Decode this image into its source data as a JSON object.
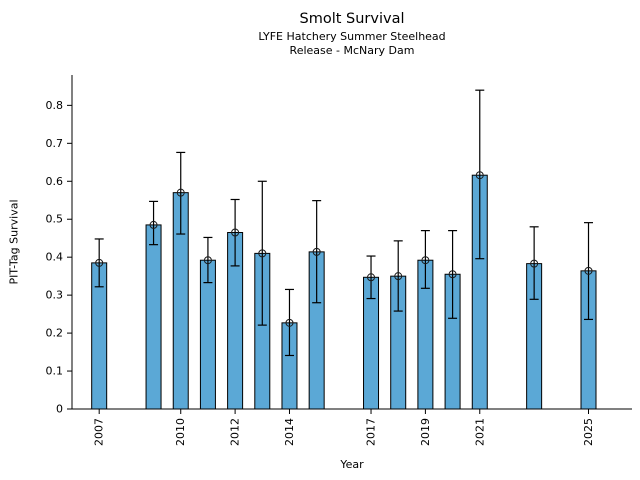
{
  "figure": {
    "title": "Smolt Survival",
    "subtitle1": "LYFE Hatchery Summer Steelhead",
    "subtitle2": "Release - McNary Dam"
  },
  "chart_data": {
    "type": "bar",
    "title": "Smolt Survival",
    "subtitle": [
      "LYFE Hatchery Summer Steelhead",
      "Release - McNary Dam"
    ],
    "xlabel": "Year",
    "ylabel": "PIT-Tag Survival",
    "categories": [
      2007,
      2009,
      2010,
      2011,
      2012,
      2013,
      2014,
      2015,
      2017,
      2018,
      2019,
      2020,
      2021,
      2023,
      2025
    ],
    "values": [
      0.385,
      0.485,
      0.57,
      0.392,
      0.465,
      0.41,
      0.227,
      0.414,
      0.347,
      0.35,
      0.392,
      0.355,
      0.616,
      0.383,
      0.364
    ],
    "error_low": [
      0.322,
      0.433,
      0.461,
      0.333,
      0.377,
      0.221,
      0.141,
      0.28,
      0.291,
      0.258,
      0.318,
      0.239,
      0.396,
      0.289,
      0.236
    ],
    "error_high": [
      0.448,
      0.547,
      0.676,
      0.452,
      0.552,
      0.6,
      0.315,
      0.549,
      0.403,
      0.443,
      0.47,
      0.47,
      0.84,
      0.48,
      0.491
    ],
    "missing_years": [
      2008,
      2016,
      2022,
      2024
    ],
    "xlim": [
      2006.0,
      2026.6
    ],
    "ylim": [
      0,
      0.88
    ],
    "yticks": [
      {
        "v": 0,
        "label": "0"
      },
      {
        "v": 0.1,
        "label": "0.1"
      },
      {
        "v": 0.2,
        "label": "0.2"
      },
      {
        "v": 0.3,
        "label": "0.3"
      },
      {
        "v": 0.4,
        "label": "0.4"
      },
      {
        "v": 0.5,
        "label": "0.5"
      },
      {
        "v": 0.6,
        "label": "0.6"
      },
      {
        "v": 0.7,
        "label": "0.7"
      },
      {
        "v": 0.8,
        "label": "0.8"
      }
    ],
    "xticks": [
      {
        "v": 2007,
        "label": "2007"
      },
      {
        "v": 2010,
        "label": "2010"
      },
      {
        "v": 2012,
        "label": "2012"
      },
      {
        "v": 2014,
        "label": "2014"
      },
      {
        "v": 2017,
        "label": "2017"
      },
      {
        "v": 2019,
        "label": "2019"
      },
      {
        "v": 2021,
        "label": "2021"
      },
      {
        "v": 2025,
        "label": "2025"
      }
    ],
    "grid": false,
    "legend": null,
    "marker": "open-circle",
    "colors": {
      "bar_fill": "#5BA8D6",
      "bar_edge": "#000000",
      "errorbar": "#000000",
      "marker_edge": "#1a1a1a",
      "axis": "#000000",
      "text": "#000000",
      "background": "#ffffff"
    }
  }
}
